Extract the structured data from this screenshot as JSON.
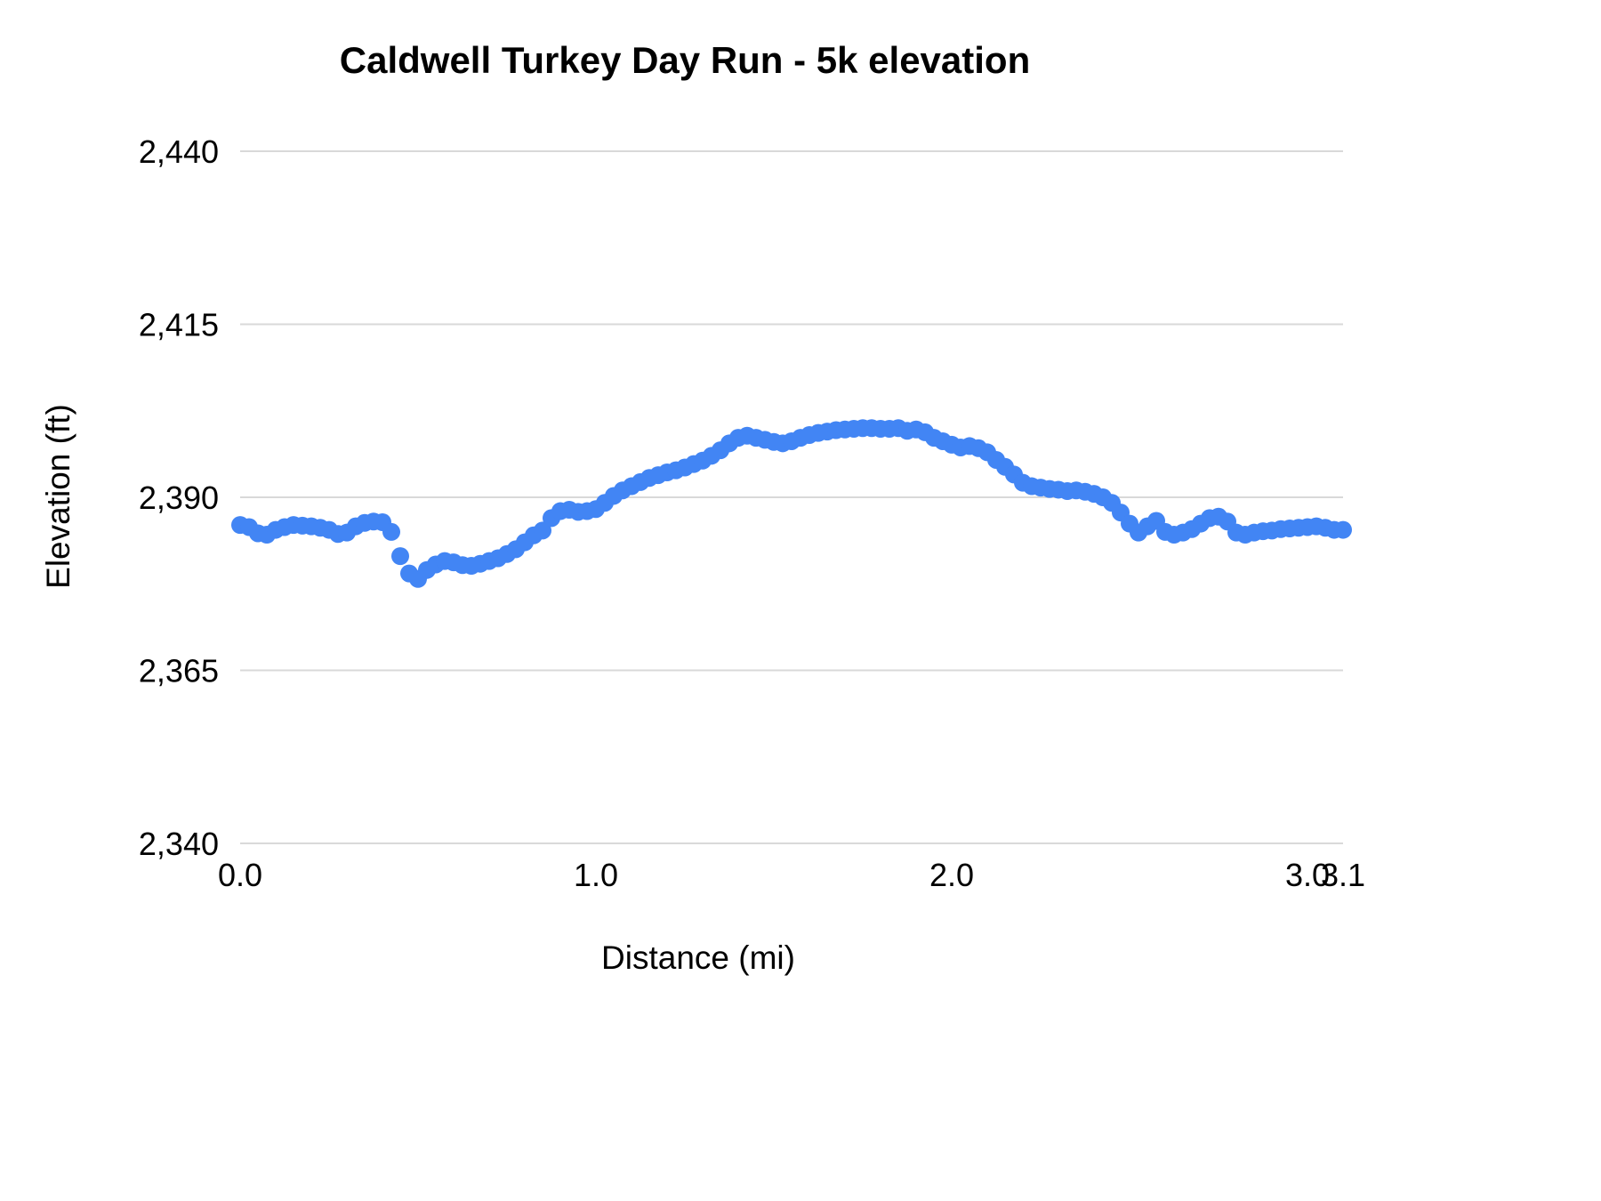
{
  "chart_data": {
    "type": "scatter",
    "title": "Caldwell Turkey Day Run - 5k elevation",
    "xlabel": "Distance (mi)",
    "ylabel": "Elevation (ft)",
    "xlim": [
      0.0,
      3.1
    ],
    "ylim": [
      2340,
      2440
    ],
    "yticks": [
      2340,
      2365,
      2390,
      2415,
      2440
    ],
    "ytick_labels": [
      "2,340",
      "2,365",
      "2,390",
      "2,415",
      "2,440"
    ],
    "xticks": [
      0.0,
      1.0,
      2.0,
      3.0,
      3.1
    ],
    "xtick_labels": [
      "0.0",
      "1.0",
      "2.0",
      "3.0",
      "3.1"
    ],
    "grid": "horizontal",
    "legend_position": "none",
    "point_color": "#4285f4",
    "gridline_color": "#d9d9d9",
    "marker_radius": 10,
    "series": [
      {
        "name": "elevation",
        "points": [
          [
            0.0,
            2386.0
          ],
          [
            0.025,
            2385.7
          ],
          [
            0.05,
            2384.8
          ],
          [
            0.075,
            2384.6
          ],
          [
            0.1,
            2385.3
          ],
          [
            0.125,
            2385.7
          ],
          [
            0.15,
            2386.0
          ],
          [
            0.175,
            2385.9
          ],
          [
            0.2,
            2385.8
          ],
          [
            0.225,
            2385.6
          ],
          [
            0.25,
            2385.3
          ],
          [
            0.275,
            2384.7
          ],
          [
            0.3,
            2384.9
          ],
          [
            0.325,
            2385.8
          ],
          [
            0.35,
            2386.3
          ],
          [
            0.375,
            2386.5
          ],
          [
            0.4,
            2386.4
          ],
          [
            0.425,
            2385.0
          ],
          [
            0.45,
            2381.5
          ],
          [
            0.475,
            2379.0
          ],
          [
            0.5,
            2378.2
          ],
          [
            0.525,
            2379.5
          ],
          [
            0.55,
            2380.3
          ],
          [
            0.575,
            2380.8
          ],
          [
            0.6,
            2380.6
          ],
          [
            0.625,
            2380.2
          ],
          [
            0.65,
            2380.1
          ],
          [
            0.675,
            2380.4
          ],
          [
            0.7,
            2380.8
          ],
          [
            0.725,
            2381.2
          ],
          [
            0.75,
            2381.8
          ],
          [
            0.775,
            2382.5
          ],
          [
            0.8,
            2383.5
          ],
          [
            0.825,
            2384.5
          ],
          [
            0.85,
            2385.2
          ],
          [
            0.875,
            2387.0
          ],
          [
            0.9,
            2388.0
          ],
          [
            0.925,
            2388.2
          ],
          [
            0.95,
            2387.9
          ],
          [
            0.975,
            2388.0
          ],
          [
            1.0,
            2388.3
          ],
          [
            1.025,
            2389.2
          ],
          [
            1.05,
            2390.2
          ],
          [
            1.075,
            2391.0
          ],
          [
            1.1,
            2391.6
          ],
          [
            1.125,
            2392.2
          ],
          [
            1.15,
            2392.8
          ],
          [
            1.175,
            2393.2
          ],
          [
            1.2,
            2393.6
          ],
          [
            1.225,
            2393.9
          ],
          [
            1.25,
            2394.3
          ],
          [
            1.275,
            2394.8
          ],
          [
            1.3,
            2395.3
          ],
          [
            1.325,
            2396.0
          ],
          [
            1.35,
            2396.8
          ],
          [
            1.375,
            2397.8
          ],
          [
            1.4,
            2398.6
          ],
          [
            1.425,
            2398.9
          ],
          [
            1.45,
            2398.6
          ],
          [
            1.475,
            2398.3
          ],
          [
            1.5,
            2398.0
          ],
          [
            1.525,
            2397.8
          ],
          [
            1.55,
            2398.1
          ],
          [
            1.575,
            2398.6
          ],
          [
            1.6,
            2399.0
          ],
          [
            1.625,
            2399.3
          ],
          [
            1.65,
            2399.5
          ],
          [
            1.675,
            2399.7
          ],
          [
            1.7,
            2399.8
          ],
          [
            1.725,
            2399.9
          ],
          [
            1.75,
            2400.0
          ],
          [
            1.775,
            2400.0
          ],
          [
            1.8,
            2399.9
          ],
          [
            1.825,
            2399.9
          ],
          [
            1.85,
            2400.0
          ],
          [
            1.875,
            2399.6
          ],
          [
            1.9,
            2399.8
          ],
          [
            1.925,
            2399.4
          ],
          [
            1.95,
            2398.6
          ],
          [
            1.975,
            2398.1
          ],
          [
            2.0,
            2397.6
          ],
          [
            2.025,
            2397.2
          ],
          [
            2.05,
            2397.4
          ],
          [
            2.075,
            2397.1
          ],
          [
            2.1,
            2396.5
          ],
          [
            2.125,
            2395.4
          ],
          [
            2.15,
            2394.4
          ],
          [
            2.175,
            2393.3
          ],
          [
            2.2,
            2392.1
          ],
          [
            2.225,
            2391.6
          ],
          [
            2.25,
            2391.4
          ],
          [
            2.275,
            2391.2
          ],
          [
            2.3,
            2391.1
          ],
          [
            2.325,
            2390.9
          ],
          [
            2.35,
            2391.0
          ],
          [
            2.375,
            2390.8
          ],
          [
            2.4,
            2390.5
          ],
          [
            2.425,
            2390.0
          ],
          [
            2.45,
            2389.2
          ],
          [
            2.475,
            2387.8
          ],
          [
            2.5,
            2386.2
          ],
          [
            2.525,
            2384.9
          ],
          [
            2.55,
            2385.8
          ],
          [
            2.575,
            2386.6
          ],
          [
            2.6,
            2385.0
          ],
          [
            2.625,
            2384.6
          ],
          [
            2.65,
            2384.9
          ],
          [
            2.675,
            2385.4
          ],
          [
            2.7,
            2386.2
          ],
          [
            2.725,
            2387.0
          ],
          [
            2.75,
            2387.2
          ],
          [
            2.775,
            2386.5
          ],
          [
            2.8,
            2384.9
          ],
          [
            2.825,
            2384.6
          ],
          [
            2.85,
            2384.9
          ],
          [
            2.875,
            2385.1
          ],
          [
            2.9,
            2385.2
          ],
          [
            2.925,
            2385.4
          ],
          [
            2.95,
            2385.5
          ],
          [
            2.975,
            2385.6
          ],
          [
            3.0,
            2385.7
          ],
          [
            3.025,
            2385.8
          ],
          [
            3.05,
            2385.6
          ],
          [
            3.075,
            2385.3
          ],
          [
            3.1,
            2385.3
          ]
        ]
      }
    ]
  }
}
